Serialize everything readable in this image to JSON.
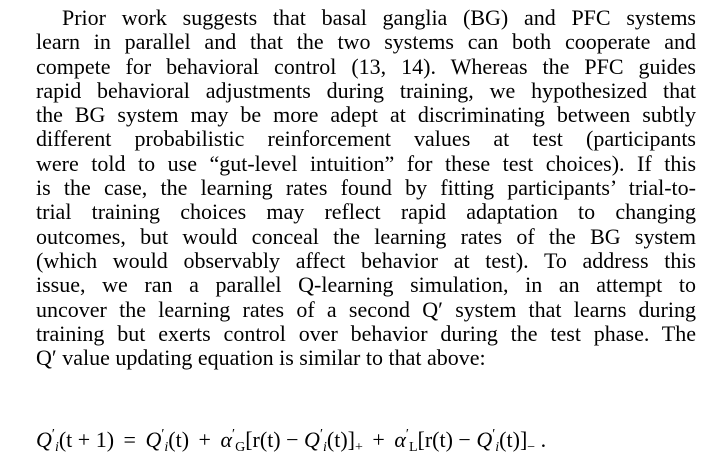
{
  "paragraph": {
    "lines": [
      "Prior work suggests that basal ganglia (BG) and PFC systems",
      "learn in parallel and that the two systems can both cooperate and",
      "compete for behavioral control (13, 14). Whereas the PFC guides",
      "rapid behavioral adjustments during training, we hypothesized that",
      "the BG system may be more adept at discriminating between subtly",
      "different probabilistic reinforcement values at test (participants",
      "were told to use “gut-level intuition” for these test choices). If this",
      "is the case, the learning rates found by fitting participants’ trial-to-",
      "trial training choices may reflect rapid adaptation to changing",
      "outcomes, but would conceal the learning rates of the BG system",
      "(which would observably affect behavior at test). To address this",
      "issue, we ran a parallel Q-learning simulation, in an attempt to",
      "uncover the learning rates of a second Q′ system that learns during",
      "training but exerts control over behavior during the test phase. The",
      "Q′ value updating equation is similar to that above:"
    ]
  },
  "equation": {
    "Q": "Q",
    "prime": "′",
    "i": "i",
    "t_plus_1": "(t + 1)",
    "equals": "=",
    "t": "(t)",
    "plus": "+",
    "alpha": "α",
    "G": "G",
    "L": "L",
    "r_open": "[r(t) −",
    "close_plus": "]",
    "plus_sub": "+",
    "close_minus": "]",
    "minus_sub": "−",
    "period": "."
  }
}
